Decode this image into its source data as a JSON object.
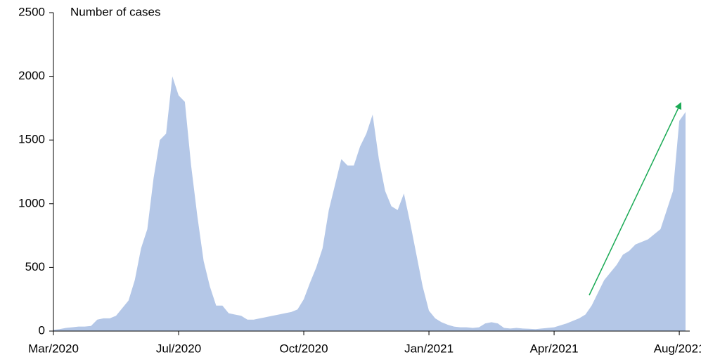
{
  "chart_data": {
    "type": "area",
    "title": "Number of cases",
    "values": [
      10,
      15,
      25,
      30,
      35,
      35,
      40,
      90,
      100,
      100,
      120,
      180,
      240,
      400,
      650,
      800,
      1200,
      1500,
      1550,
      2000,
      1850,
      1800,
      1300,
      900,
      550,
      350,
      200,
      200,
      140,
      130,
      120,
      90,
      90,
      100,
      110,
      120,
      130,
      140,
      150,
      170,
      250,
      380,
      500,
      650,
      950,
      1150,
      1350,
      1300,
      1300,
      1450,
      1550,
      1700,
      1350,
      1100,
      980,
      950,
      1080,
      850,
      600,
      350,
      160,
      100,
      70,
      50,
      35,
      30,
      30,
      25,
      30,
      60,
      70,
      60,
      25,
      20,
      25,
      20,
      18,
      15,
      20,
      25,
      30,
      45,
      60,
      80,
      100,
      130,
      200,
      300,
      400,
      460,
      520,
      600,
      630,
      680,
      700,
      720,
      760,
      800,
      950,
      1100,
      1650,
      1720
    ],
    "color": "#b4c7e7",
    "xlim": [
      0,
      101
    ],
    "xticks": [
      {
        "value": 0,
        "label": "Mar/2020"
      },
      {
        "value": 20,
        "label": "Jul/2020"
      },
      {
        "value": 40,
        "label": "Oct/2020"
      },
      {
        "value": 60,
        "label": "Jan/2021"
      },
      {
        "value": 80,
        "label": "Apr/2021"
      },
      {
        "value": 100,
        "label": "Aug/2021"
      }
    ],
    "ylim": [
      0,
      2500
    ],
    "yticks": [
      0,
      500,
      1000,
      1500,
      2000,
      2500
    ]
  }
}
